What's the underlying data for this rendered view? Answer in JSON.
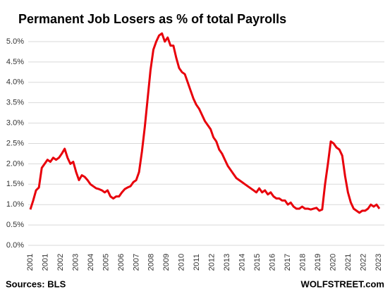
{
  "chart_data": {
    "type": "line",
    "title": "Permanent Job Losers as % of total Payrolls",
    "x_labels": [
      "2001",
      "2001",
      "2002",
      "2003",
      "2004",
      "2005",
      "2006",
      "2007",
      "2008",
      "2009",
      "2010",
      "2011",
      "2012",
      "2013",
      "2014",
      "2015",
      "2016",
      "2017",
      "2018",
      "2019",
      "2020",
      "2021",
      "2022",
      "2023"
    ],
    "values": [
      0.88,
      1.1,
      1.35,
      1.42,
      1.9,
      2.0,
      2.1,
      2.05,
      2.15,
      2.1,
      2.15,
      2.25,
      2.37,
      2.15,
      2.0,
      2.05,
      1.8,
      1.6,
      1.72,
      1.68,
      1.6,
      1.5,
      1.45,
      1.4,
      1.38,
      1.35,
      1.3,
      1.35,
      1.2,
      1.15,
      1.2,
      1.2,
      1.3,
      1.38,
      1.42,
      1.45,
      1.55,
      1.6,
      1.8,
      2.3,
      2.9,
      3.6,
      4.3,
      4.8,
      5.0,
      5.15,
      5.2,
      5.0,
      5.1,
      4.9,
      4.9,
      4.6,
      4.35,
      4.25,
      4.2,
      4.0,
      3.8,
      3.6,
      3.45,
      3.35,
      3.2,
      3.05,
      2.95,
      2.85,
      2.65,
      2.55,
      2.35,
      2.25,
      2.1,
      1.95,
      1.85,
      1.75,
      1.65,
      1.6,
      1.55,
      1.5,
      1.45,
      1.4,
      1.35,
      1.3,
      1.4,
      1.3,
      1.35,
      1.25,
      1.3,
      1.2,
      1.15,
      1.15,
      1.1,
      1.1,
      1.0,
      1.05,
      0.95,
      0.9,
      0.9,
      0.95,
      0.9,
      0.9,
      0.88,
      0.9,
      0.92,
      0.85,
      0.88,
      1.5,
      2.0,
      2.55,
      2.5,
      2.4,
      2.35,
      2.2,
      1.7,
      1.3,
      1.05,
      0.9,
      0.85,
      0.8,
      0.85,
      0.85,
      0.9,
      1.0,
      0.95,
      1.0,
      0.9
    ],
    "color": "#e8000b",
    "ylim": [
      0,
      5.2
    ],
    "yticks": [
      {
        "value": 0,
        "label": "0.0%"
      },
      {
        "value": 0.5,
        "label": "0.5%"
      },
      {
        "value": 1,
        "label": "1.0%"
      },
      {
        "value": 1.5,
        "label": "1.5%"
      },
      {
        "value": 2,
        "label": "2.0%"
      },
      {
        "value": 2.5,
        "label": "2.5%"
      },
      {
        "value": 3,
        "label": "3.0%"
      },
      {
        "value": 3.5,
        "label": "3.5%"
      },
      {
        "value": 4,
        "label": "4.0%"
      },
      {
        "value": 4.5,
        "label": "4.5%"
      },
      {
        "value": 5,
        "label": "5.0%"
      }
    ],
    "grid": true,
    "source": "Sources: BLS",
    "brand": "WOLFSTREET.com"
  }
}
